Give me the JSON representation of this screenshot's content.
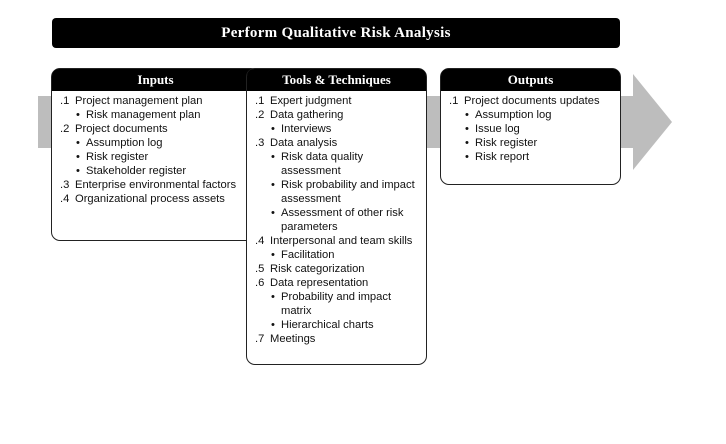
{
  "title": "Perform Qualitative Risk Analysis",
  "boxes": [
    {
      "header": "Inputs",
      "items": [
        {
          "num": ".1",
          "text": "Project management plan",
          "subs": [
            "Risk management plan"
          ]
        },
        {
          "num": ".2",
          "text": "Project documents",
          "subs": [
            "Assumption log",
            "Risk register",
            "Stakeholder register"
          ]
        },
        {
          "num": ".3",
          "text": "Enterprise environmental factors",
          "subs": []
        },
        {
          "num": ".4",
          "text": "Organizational process assets",
          "subs": []
        }
      ]
    },
    {
      "header": "Tools & Techniques",
      "items": [
        {
          "num": ".1",
          "text": "Expert judgment",
          "subs": []
        },
        {
          "num": ".2",
          "text": "Data gathering",
          "subs": [
            "Interviews"
          ]
        },
        {
          "num": ".3",
          "text": "Data analysis",
          "subs": [
            "Risk data quality assessment",
            "Risk probability and impact assessment",
            "Assessment of other risk parameters"
          ]
        },
        {
          "num": ".4",
          "text": "Interpersonal and team skills",
          "subs": [
            "Facilitation"
          ]
        },
        {
          "num": ".5",
          "text": "Risk categorization",
          "subs": []
        },
        {
          "num": ".6",
          "text": "Data representation",
          "subs": [
            "Probability and impact matrix",
            "Hierarchical charts"
          ]
        },
        {
          "num": ".7",
          "text": "Meetings",
          "subs": []
        }
      ]
    },
    {
      "header": "Outputs",
      "items": [
        {
          "num": ".1",
          "text": "Project documents updates",
          "subs": [
            "Assumption log",
            "Issue log",
            "Risk register",
            "Risk report"
          ]
        }
      ]
    }
  ]
}
